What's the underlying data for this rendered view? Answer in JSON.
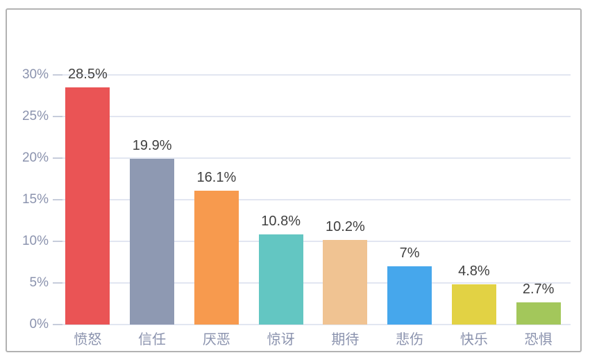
{
  "chart_data": {
    "type": "bar",
    "title": "",
    "xlabel": "",
    "ylabel": "",
    "categories": [
      "愤怒",
      "信任",
      "厌恶",
      "惊讶",
      "期待",
      "悲伤",
      "快乐",
      "恐惧"
    ],
    "values": [
      28.5,
      19.9,
      16.1,
      10.8,
      10.2,
      7,
      4.8,
      2.7
    ],
    "value_labels": [
      "28.5%",
      "19.9%",
      "16.1%",
      "10.8%",
      "10.2%",
      "7%",
      "4.8%",
      "2.7%"
    ],
    "bar_colors": [
      "#ea5455",
      "#8e99b2",
      "#f79a4e",
      "#63c6c2",
      "#f0c392",
      "#46a7ec",
      "#e2d244",
      "#a3c75b"
    ],
    "ylim": [
      0,
      30
    ],
    "yticks": [
      0,
      5,
      10,
      15,
      20,
      25,
      30
    ],
    "ytick_labels": [
      "0%",
      "5%",
      "10%",
      "15%",
      "20%",
      "25%",
      "30%"
    ],
    "grid": true,
    "legend": false
  },
  "colors": {
    "background": "#ffffff",
    "frame_border": "#b2b2b2",
    "gridline": "#e2e6f1",
    "axis_tick": "#c6ccdb",
    "axis_label": "#8b93ae",
    "data_label": "#3f3f3f"
  }
}
